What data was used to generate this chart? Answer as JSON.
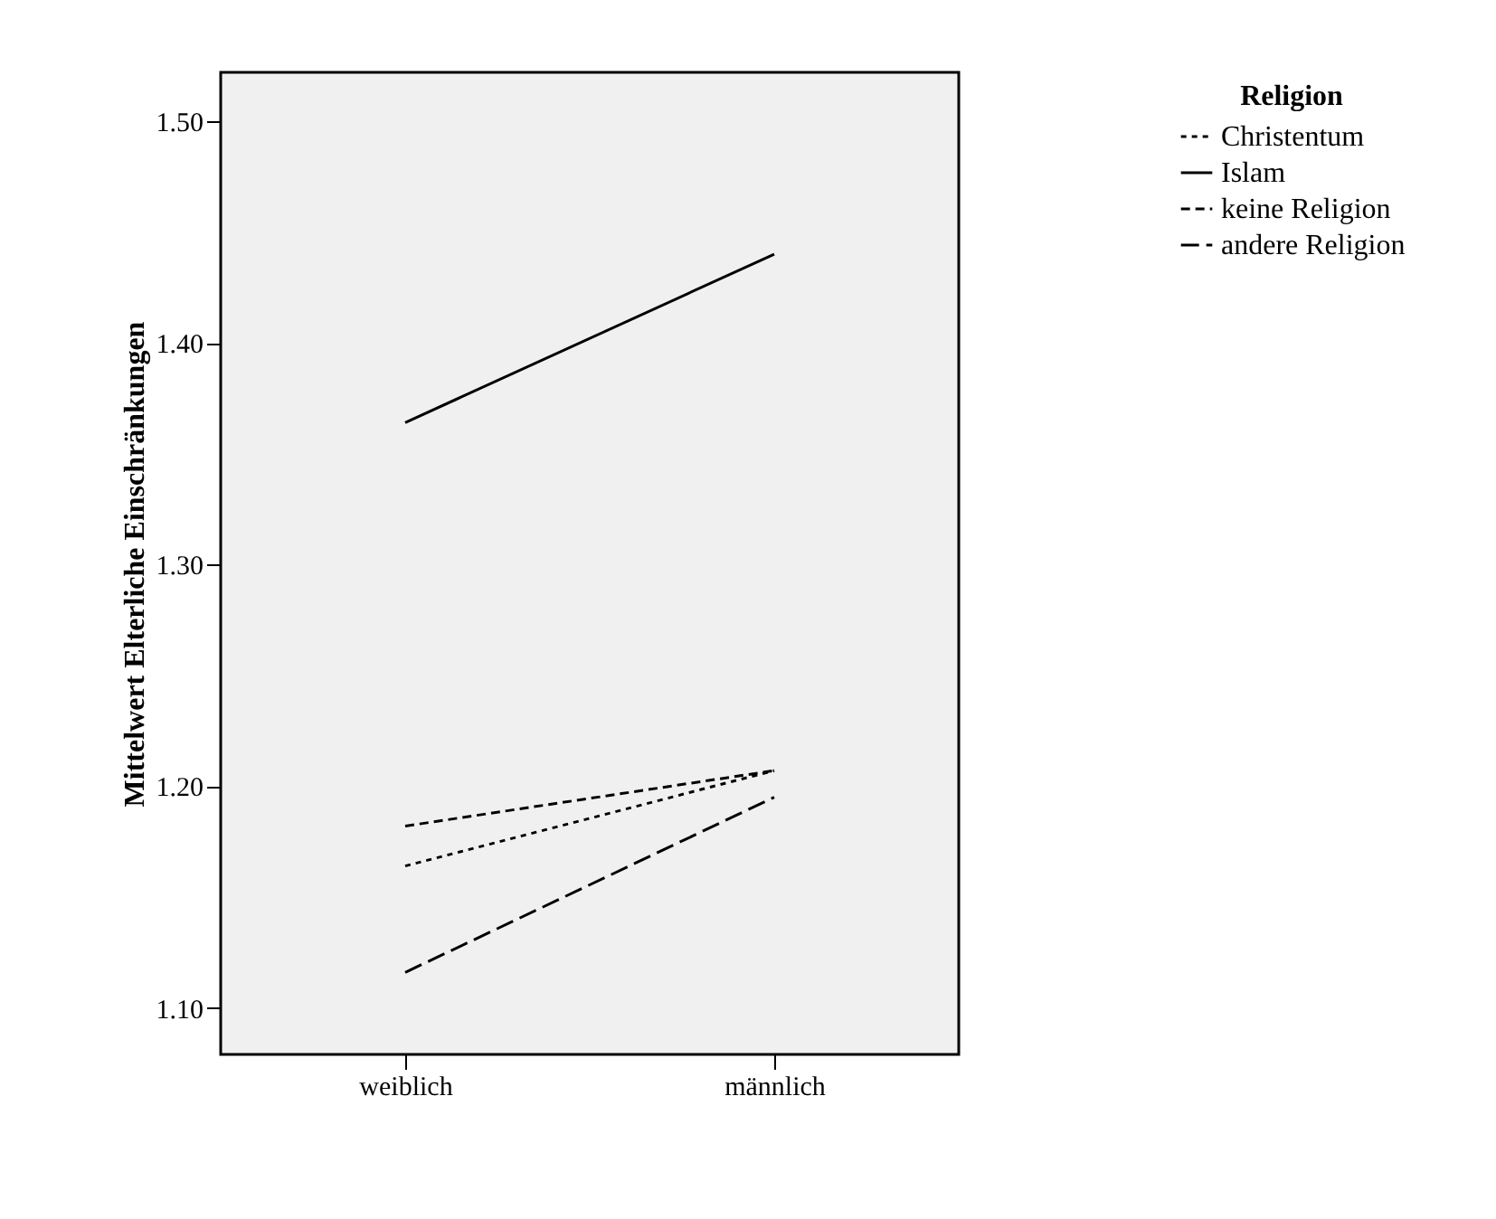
{
  "chart_data": {
    "type": "line",
    "ylabel": "Mittelwert Elterliche Einschränkungen",
    "legend_title": "Religion",
    "categories": [
      "weiblich",
      "männlich"
    ],
    "series": [
      {
        "name": "Christentum",
        "color": "#000000",
        "line_style": "dotted",
        "values": [
          1.164,
          1.207
        ]
      },
      {
        "name": "Islam",
        "color": "#000000",
        "line_style": "solid",
        "values": [
          1.364,
          1.44
        ]
      },
      {
        "name": "keine Religion",
        "color": "#000000",
        "line_style": "dashed",
        "values": [
          1.182,
          1.207
        ]
      },
      {
        "name": "andere Religion",
        "color": "#000000",
        "line_style": "longdashed",
        "values": [
          1.116,
          1.195
        ]
      }
    ],
    "ylim": [
      1.079,
      1.522
    ],
    "yticks": [
      {
        "value": 1.1,
        "label": "1.10"
      },
      {
        "value": 1.2,
        "label": "1.20"
      },
      {
        "value": 1.3,
        "label": "1.30"
      },
      {
        "value": 1.4,
        "label": "1.40"
      },
      {
        "value": 1.5,
        "label": "1.50"
      }
    ],
    "grid": false,
    "legend": "top right",
    "marker": "none"
  }
}
